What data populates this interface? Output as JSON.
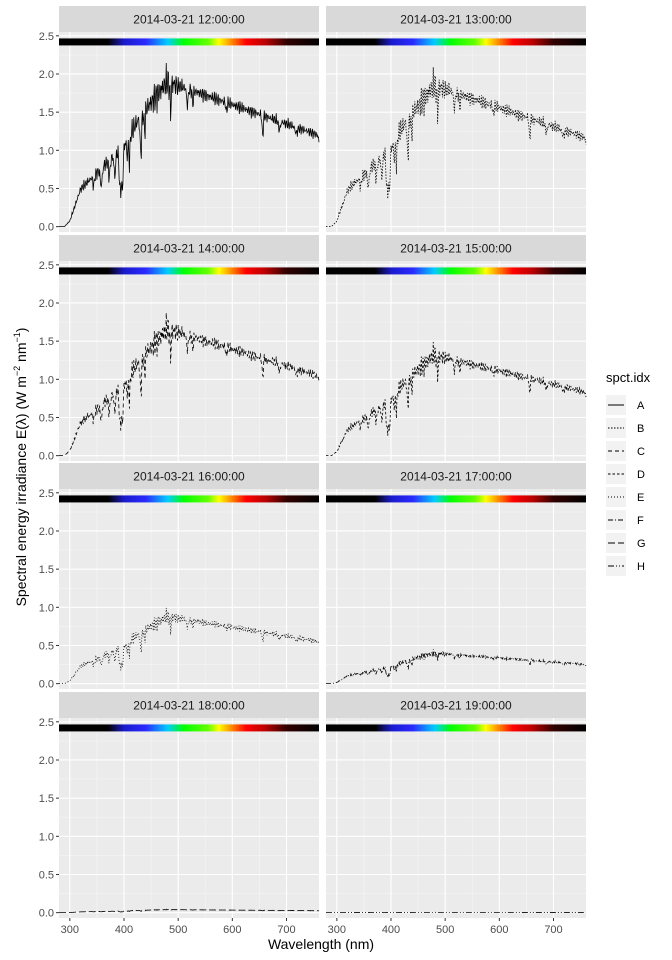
{
  "chart_data": {
    "type": "line",
    "xlabel": "Wavelength (nm)",
    "ylabel_parts": {
      "main": "Spectral  energy  irradiance  E(",
      "lambda": "λ",
      "units_open": ")  (W m",
      "exp1": "−2",
      "mid": " nm",
      "exp2": "−1",
      "close": ")"
    },
    "xlim": [
      280,
      760
    ],
    "ylim": [
      -0.07,
      2.55
    ],
    "x_ticks": [
      300,
      400,
      500,
      600,
      700
    ],
    "y_ticks": [
      0.0,
      0.5,
      1.0,
      1.5,
      2.0,
      2.5
    ],
    "y_tick_labels": [
      "0.0",
      "0.5",
      "1.0",
      "1.5",
      "2.0",
      "2.5"
    ],
    "grid": true,
    "legend": {
      "title": "spct.idx",
      "position": "right"
    },
    "color_bar": {
      "y": 2.42,
      "x_range": [
        280,
        760
      ],
      "stops": [
        {
          "wl": 280,
          "color": "#000000"
        },
        {
          "wl": 370,
          "color": "#000000"
        },
        {
          "wl": 400,
          "color": "#1a1acc"
        },
        {
          "wl": 440,
          "color": "#2a2aff"
        },
        {
          "wl": 480,
          "color": "#00ccff"
        },
        {
          "wl": 510,
          "color": "#00ff00"
        },
        {
          "wl": 555,
          "color": "#66ff00"
        },
        {
          "wl": 575,
          "color": "#ffff00"
        },
        {
          "wl": 600,
          "color": "#ff8000"
        },
        {
          "wl": 625,
          "color": "#ff0000"
        },
        {
          "wl": 660,
          "color": "#bb0000"
        },
        {
          "wl": 700,
          "color": "#300000"
        },
        {
          "wl": 760,
          "color": "#000000"
        }
      ]
    },
    "series": [
      {
        "name": "A",
        "panel_title": "2014-03-21 12:00:00",
        "dash": "",
        "peak": 1.9
      },
      {
        "name": "B",
        "panel_title": "2014-03-21 13:00:00",
        "dash": "1.5,1.5",
        "peak": 1.85
      },
      {
        "name": "C",
        "panel_title": "2014-03-21 14:00:00",
        "dash": "4,3",
        "peak": 1.66
      },
      {
        "name": "D",
        "panel_title": "2014-03-21 15:00:00",
        "dash": "2.5,2",
        "peak": 1.32
      },
      {
        "name": "E",
        "panel_title": "2014-03-21 16:00:00",
        "dash": "1,2",
        "peak": 0.88
      },
      {
        "name": "F",
        "panel_title": "2014-03-21 17:00:00",
        "dash": "5,2,1,2",
        "peak": 0.4
      },
      {
        "name": "G",
        "panel_title": "2014-03-21 18:00:00",
        "dash": "7,3",
        "peak": 0.04
      },
      {
        "name": "H",
        "panel_title": "2014-03-21 19:00:00",
        "dash": "6,2,1,2,1,2",
        "peak": 0.004
      }
    ]
  }
}
